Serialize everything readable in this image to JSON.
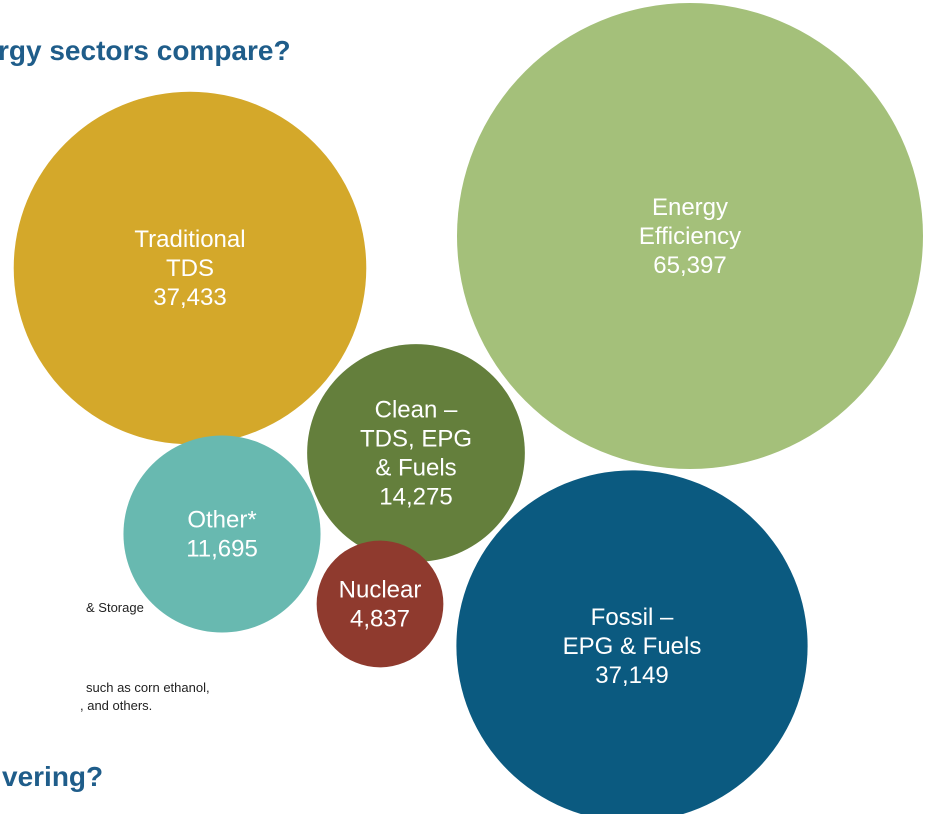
{
  "chart_data": {
    "type": "bubble",
    "title": "rgy sectors compare?",
    "categories": [
      [
        "Traditional",
        "TDS"
      ],
      [
        "Energy",
        "Efficiency"
      ],
      [
        "Clean –",
        "TDS, EPG",
        "& Fuels"
      ],
      [
        "Other*"
      ],
      [
        "Nuclear"
      ],
      [
        "Fossil –",
        "EPG & Fuels"
      ]
    ],
    "values": [
      37433,
      65397,
      14275,
      11695,
      4837,
      37149
    ],
    "value_labels": [
      "37,433",
      "65,397",
      "14,275",
      "11,695",
      "4,837",
      "37,149"
    ],
    "colors": [
      "#d4a82a",
      "#a4c07a",
      "#647f3c",
      "#68b9b0",
      "#8f3a2e",
      "#0b5a80"
    ],
    "annotations": [
      "& Storage",
      "such as corn ethanol,",
      ", and others."
    ],
    "subtitle": "vering?"
  }
}
